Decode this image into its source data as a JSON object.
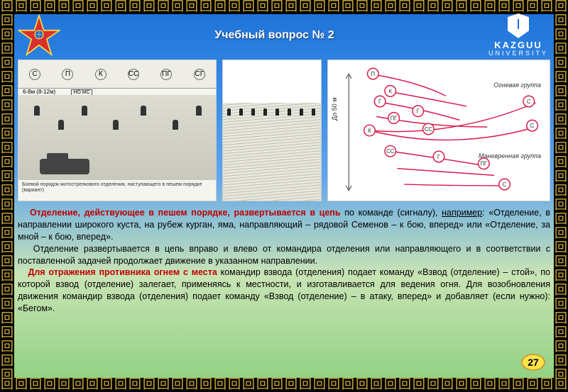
{
  "header": {
    "title": "Учебный вопрос № 2",
    "university_name": "KAZGUU",
    "university_sub": "UNIVERSITY"
  },
  "emblem": {
    "type": "star",
    "fill": "#d92f2f",
    "border": "#f5d742",
    "center": "#1a6fd6"
  },
  "diagrams": {
    "d1": {
      "labels": [
        "С",
        "П",
        "К",
        "СС",
        "ПГ",
        "СГ"
      ],
      "spacing_note": "6-8м (8-12м)",
      "arrow_note": "НО МС",
      "caption": "Боевой порядок мотострелкового отделения, наступающего в пешем порядке (вариант)",
      "soldier_positions_pct": [
        8,
        20,
        32,
        48,
        62,
        78,
        90
      ]
    },
    "d2": {
      "type": "landscape-sketch",
      "figure_count": 8
    },
    "d3": {
      "type": "flow-arrows",
      "axis_label": "До 50 м",
      "group1_label": "Огневая группа",
      "group2_label": "Маневренная группа",
      "node_labels": [
        "П",
        "К",
        "Г",
        "Г",
        "ПГ",
        "СС",
        "К",
        "СС",
        "Г",
        "ПГ",
        "С",
        "С",
        "С"
      ],
      "arrow_color": "#d91a4d",
      "node_border": "#d91a4d",
      "node_fill": "#ffffff"
    }
  },
  "body": {
    "p1_lead": "Отделение, действующее в пешем порядке, развертывается в цепь",
    "p1_cont": " по команде (сигналу), ",
    "p1_ex": "например",
    "p1_rest": ": «Отделение, в направлении широкого куста, на рубеж курган, яма, направляющий – рядовой Семенов – к бою, вперед» или «Отделение, за мной – к бою, вперед».",
    "p2": "Отделение развертывается в цепь вправо и влево от командира отделения или направляющего и в соответствии с поставленной задачей продолжает движение в указанном направлении.",
    "p3_lead": "Для отражения противника огнем с места",
    "p3_rest": " командир взвода (отделения) подает команду «Взвод (отделение) – стой», по которой взвод (отделение) залегает, применяясь к местности, и изготавливается для ведения огня. Для возобновления движения командир взвода (отделения) подает команду «Взвод (отделение) – в атаку, вперед» и добавляет (если нужно): «Бегом»."
  },
  "page_number": "27",
  "colors": {
    "border_gold": "#d4af37",
    "border_bg": "#000000",
    "sky_gradient_top": "#1a6fd6",
    "sky_gradient_bottom": "#8bcf7d",
    "red_text": "#c00000"
  }
}
